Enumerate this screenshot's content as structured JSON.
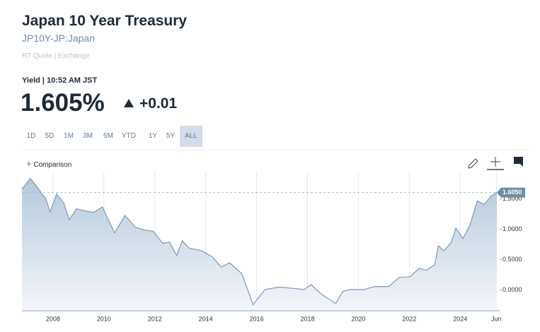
{
  "header": {
    "title": "Japan 10 Year Treasury",
    "symbol": "JP10Y-JP:Japan",
    "source": "RT Quote | Exchange"
  },
  "quote": {
    "label": "Yield | 10:52 AM JST",
    "yield": "1.605%",
    "change": "+0.01"
  },
  "range_buttons": [
    "1D",
    "5D",
    "1M",
    "3M",
    "6M",
    "YTD",
    "1Y",
    "5Y",
    "ALL"
  ],
  "selected_range": "ALL",
  "comparison": "Comparison",
  "chart_data": {
    "type": "area",
    "color": "#7d98b3",
    "x": [
      2006.78,
      2007.11,
      2007.44,
      2007.72,
      2007.89,
      2008.14,
      2008.42,
      2008.64,
      2008.92,
      2009.31,
      2009.61,
      2009.94,
      2010.42,
      2010.83,
      2011.25,
      2011.61,
      2011.94,
      2012.31,
      2012.58,
      2012.86,
      2013.08,
      2013.36,
      2013.83,
      2014.25,
      2014.61,
      2014.94,
      2015.42,
      2015.86,
      2016.33,
      2016.89,
      2017.44,
      2017.86,
      2018.14,
      2018.56,
      2019.11,
      2019.39,
      2019.67,
      2020.22,
      2020.64,
      2021.19,
      2021.61,
      2022.03,
      2022.39,
      2022.67,
      2023.0,
      2023.14,
      2023.36,
      2023.64,
      2023.83,
      2024.11,
      2024.39,
      2024.67,
      2024.94,
      2025.22,
      2025.44
    ],
    "values": [
      1.66,
      1.84,
      1.66,
      1.5,
      1.29,
      1.58,
      1.44,
      1.16,
      1.34,
      1.3,
      1.28,
      1.37,
      0.94,
      1.23,
      1.03,
      0.99,
      0.97,
      0.77,
      0.79,
      0.57,
      0.81,
      0.69,
      0.65,
      0.55,
      0.38,
      0.45,
      0.27,
      -0.24,
      0.01,
      0.05,
      0.03,
      0.01,
      0.09,
      -0.07,
      -0.22,
      -0.02,
      0.01,
      0.01,
      0.06,
      0.06,
      0.21,
      0.22,
      0.36,
      0.33,
      0.42,
      0.73,
      0.65,
      0.78,
      1.02,
      0.85,
      1.08,
      1.47,
      1.41,
      1.55,
      1.605
    ],
    "xlim": [
      2006.78,
      2025.55
    ],
    "ylim": [
      -0.34,
      1.95
    ],
    "xticks": [
      2008,
      2010,
      2012,
      2014,
      2016,
      2018,
      2020,
      2022,
      2024,
      {
        "value": 2025.42,
        "label": "Jun"
      }
    ],
    "yticks": [
      {
        "value": 0,
        "label": "0.0000"
      },
      {
        "value": 0.5,
        "label": "0.5000"
      },
      {
        "value": 1,
        "label": "1.0000"
      },
      {
        "value": 1.5,
        "label": "1.5000"
      }
    ],
    "current": {
      "value": 1.605,
      "label": "1.6050"
    }
  }
}
